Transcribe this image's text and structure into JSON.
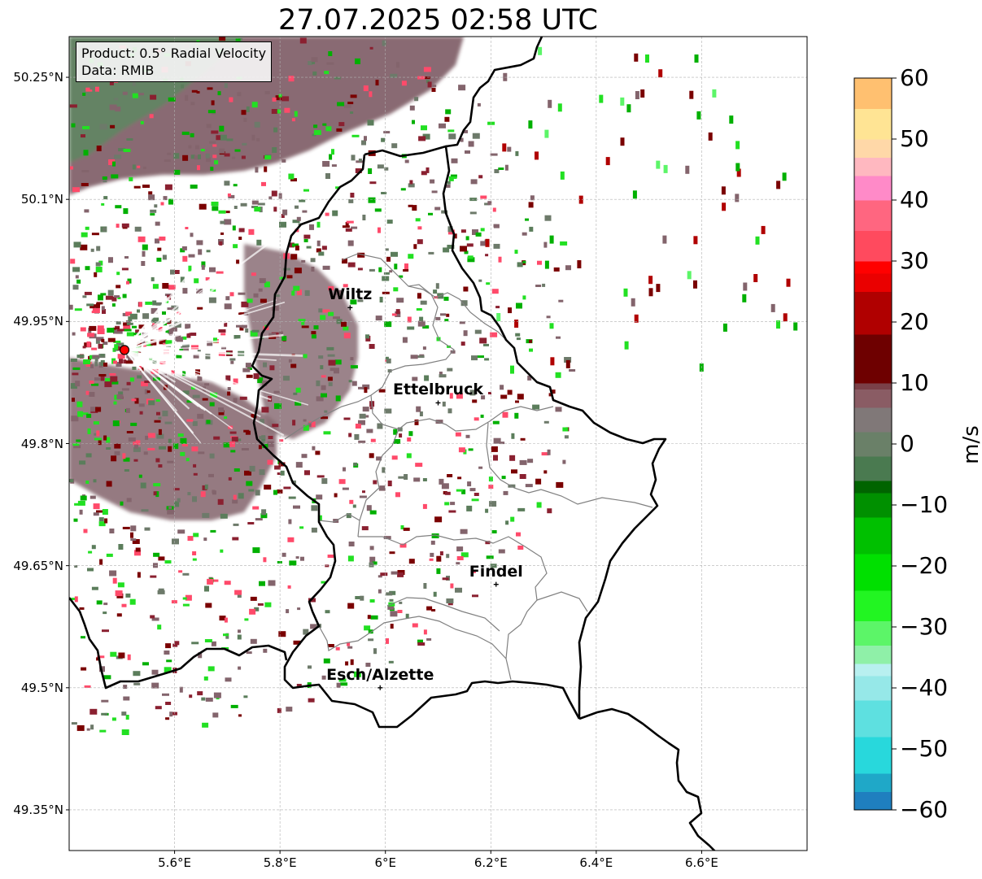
{
  "title": "27.07.2025 02:58 UTC",
  "product_box": {
    "line1": "Product: 0.5° Radial Velocity",
    "line2": "Data: RMIB"
  },
  "map_extent": {
    "lon_min": 5.4,
    "lon_max": 6.8,
    "lat_min": 49.3,
    "lat_max": 50.3
  },
  "lat_ticks": [
    {
      "value": 50.25,
      "label": "50.25°N"
    },
    {
      "value": 50.1,
      "label": "50.1°N"
    },
    {
      "value": 49.95,
      "label": "49.95°N"
    },
    {
      "value": 49.8,
      "label": "49.8°N"
    },
    {
      "value": 49.65,
      "label": "49.65°N"
    },
    {
      "value": 49.5,
      "label": "49.5°N"
    },
    {
      "value": 49.35,
      "label": "49.35°N"
    }
  ],
  "lon_ticks": [
    {
      "value": 5.6,
      "label": "5.6°E"
    },
    {
      "value": 5.8,
      "label": "5.8°E"
    },
    {
      "value": 6.0,
      "label": "6°E"
    },
    {
      "value": 6.2,
      "label": "6.2°E"
    },
    {
      "value": 6.4,
      "label": "6.4°E"
    },
    {
      "value": 6.6,
      "label": "6.6°E"
    }
  ],
  "cities": [
    {
      "name": "Wiltz",
      "lon": 5.933,
      "lat": 49.967
    },
    {
      "name": "Ettelbruck",
      "lon": 6.1,
      "lat": 49.85
    },
    {
      "name": "Findel",
      "lon": 6.21,
      "lat": 49.627
    },
    {
      "name": "Esch/Alzette",
      "lon": 5.99,
      "lat": 49.5
    }
  ],
  "radar_site": {
    "lon": 5.505,
    "lat": 49.915,
    "color": "#ff0000"
  },
  "colorbar": {
    "label": "m/s",
    "min": -60,
    "max": 60,
    "ticks": [
      {
        "value": 60,
        "label": "60"
      },
      {
        "value": 50,
        "label": "50"
      },
      {
        "value": 40,
        "label": "40"
      },
      {
        "value": 30,
        "label": "30"
      },
      {
        "value": 20,
        "label": "20"
      },
      {
        "value": 10,
        "label": "10"
      },
      {
        "value": 0,
        "label": "0"
      },
      {
        "value": -10,
        "label": "−10"
      },
      {
        "value": -20,
        "label": "−20"
      },
      {
        "value": -30,
        "label": "−30"
      },
      {
        "value": -40,
        "label": "−40"
      },
      {
        "value": -50,
        "label": "−50"
      },
      {
        "value": -60,
        "label": "−60"
      }
    ],
    "stops": [
      {
        "v": -60,
        "color": "#1f7fbf"
      },
      {
        "v": -57,
        "color": "#1fa8c8"
      },
      {
        "v": -54,
        "color": "#28d8dc"
      },
      {
        "v": -48,
        "color": "#5ee0e0"
      },
      {
        "v": -42,
        "color": "#96e8e8"
      },
      {
        "v": -38,
        "color": "#b8f0f0"
      },
      {
        "v": -36,
        "color": "#8ff0a8"
      },
      {
        "v": -33,
        "color": "#5cf568"
      },
      {
        "v": -29,
        "color": "#22f522"
      },
      {
        "v": -24,
        "color": "#00e000"
      },
      {
        "v": -18,
        "color": "#00c000"
      },
      {
        "v": -12,
        "color": "#009000"
      },
      {
        "v": -8,
        "color": "#006400"
      },
      {
        "v": -6,
        "color": "#4a7a50"
      },
      {
        "v": -2,
        "color": "#6a8068"
      },
      {
        "v": 2,
        "color": "#807878"
      },
      {
        "v": 6,
        "color": "#8a5c64"
      },
      {
        "v": 9,
        "color": "#7a4048"
      },
      {
        "v": 10,
        "color": "#6e0000"
      },
      {
        "v": 18,
        "color": "#b00000"
      },
      {
        "v": 25,
        "color": "#ea0000"
      },
      {
        "v": 28,
        "color": "#ff0000"
      },
      {
        "v": 30,
        "color": "#ff4a5e"
      },
      {
        "v": 35,
        "color": "#ff6680"
      },
      {
        "v": 40,
        "color": "#ff8ac8"
      },
      {
        "v": 44,
        "color": "#ffb8c0"
      },
      {
        "v": 47,
        "color": "#ffd8a8"
      },
      {
        "v": 50,
        "color": "#ffe494"
      },
      {
        "v": 55,
        "color": "#ffc070"
      },
      {
        "v": 60,
        "color": "#ff9a58"
      }
    ]
  },
  "colors": {
    "border_country": "#000000",
    "border_canton": "#808080",
    "echo_positive": "#83646c",
    "echo_zero": "#6d7a6a",
    "echo_negative": "#5b7d5b"
  }
}
